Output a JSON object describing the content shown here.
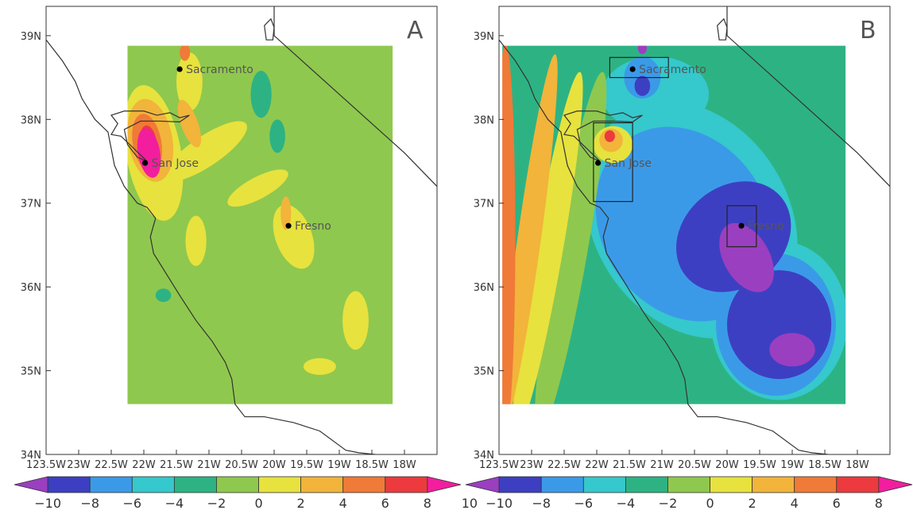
{
  "panels": [
    {
      "label": "A",
      "cities": [
        {
          "name": "Sacramento",
          "lat": 38.6,
          "lon": -121.45
        },
        {
          "name": "San Jose",
          "lat": 37.48,
          "lon": -121.98
        },
        {
          "name": "Fresno",
          "lat": 36.73,
          "lon": -119.78
        }
      ],
      "boxes": []
    },
    {
      "label": "B",
      "cities": [
        {
          "name": "Sacramento",
          "lat": 38.6,
          "lon": -121.45
        },
        {
          "name": "San Jose",
          "lat": 37.48,
          "lon": -121.98
        },
        {
          "name": "Fresno",
          "lat": 36.73,
          "lon": -119.78
        }
      ],
      "boxes": [
        {
          "name": "Sacramento",
          "lon_min": -121.8,
          "lon_max": -120.9,
          "lat_min": 38.5,
          "lat_max": 38.74
        },
        {
          "name": "San Jose",
          "lon_min": -122.05,
          "lon_max": -121.45,
          "lat_min": 37.02,
          "lat_max": 37.96
        },
        {
          "name": "Fresno",
          "lon_min": -120.0,
          "lon_max": -119.55,
          "lat_min": 36.48,
          "lat_max": 36.97
        }
      ]
    }
  ],
  "axes": {
    "lat_ticks": [
      "34N",
      "35N",
      "36N",
      "37N",
      "38N",
      "39N"
    ],
    "lat_values": [
      34,
      35,
      36,
      37,
      38,
      39
    ],
    "lon_ticks": [
      "123.5W",
      "23W",
      "22.5W",
      "22W",
      "21.5W",
      "21W",
      "20.5W",
      "20W",
      "19.5W",
      "19W",
      "18.5W",
      "18W"
    ],
    "lon_values": [
      -123.5,
      -123,
      -122.5,
      -122,
      -121.5,
      -121,
      -120.5,
      -120,
      -119.5,
      -119,
      -118.5,
      -118
    ]
  },
  "colorbar": {
    "ticks": [
      "−10",
      "−8",
      "−6",
      "−4",
      "−2",
      "0",
      "2",
      "4",
      "6",
      "8",
      "10"
    ],
    "colors": [
      "#9a3fc0",
      "#3d3fc2",
      "#3b9ae8",
      "#35c8cc",
      "#2db383",
      "#8fc84e",
      "#e7e23e",
      "#f2b43a",
      "#f07a37",
      "#ec3a3e",
      "#f21e9e"
    ]
  },
  "fields": {
    "A": {
      "background": "#8fc84e",
      "features": [
        {
          "lon": -121.85,
          "lat": 37.6,
          "rx": 0.42,
          "ry": 0.82,
          "rot": -10,
          "color": "#e7e23e"
        },
        {
          "lon": -121.05,
          "lat": 37.62,
          "rx": 0.75,
          "ry": 0.18,
          "rot": -34,
          "color": "#e7e23e"
        },
        {
          "lon": -120.25,
          "lat": 37.18,
          "rx": 0.52,
          "ry": 0.13,
          "rot": -28,
          "color": "#e7e23e"
        },
        {
          "lon": -121.3,
          "lat": 38.45,
          "rx": 0.2,
          "ry": 0.35,
          "rot": 0,
          "color": "#e7e23e"
        },
        {
          "lon": -119.7,
          "lat": 36.6,
          "rx": 0.28,
          "ry": 0.4,
          "rot": -20,
          "color": "#e7e23e"
        },
        {
          "lon": -121.2,
          "lat": 36.55,
          "rx": 0.16,
          "ry": 0.3,
          "rot": 0,
          "color": "#e7e23e"
        },
        {
          "lon": -118.75,
          "lat": 35.6,
          "rx": 0.2,
          "ry": 0.35,
          "rot": 0,
          "color": "#e7e23e"
        },
        {
          "lon": -119.3,
          "lat": 35.05,
          "rx": 0.25,
          "ry": 0.1,
          "rot": 0,
          "color": "#e7e23e"
        },
        {
          "lon": -121.9,
          "lat": 37.75,
          "rx": 0.34,
          "ry": 0.5,
          "rot": -10,
          "color": "#f2b43a"
        },
        {
          "lon": -121.3,
          "lat": 37.95,
          "rx": 0.13,
          "ry": 0.3,
          "rot": -20,
          "color": "#f2b43a"
        },
        {
          "lon": -119.82,
          "lat": 36.88,
          "rx": 0.08,
          "ry": 0.2,
          "rot": 0,
          "color": "#f2b43a"
        },
        {
          "lon": -121.95,
          "lat": 37.72,
          "rx": 0.22,
          "ry": 0.35,
          "rot": -10,
          "color": "#f07a37"
        },
        {
          "lon": -121.37,
          "lat": 38.8,
          "rx": 0.08,
          "ry": 0.1,
          "rot": 0,
          "color": "#f07a37"
        },
        {
          "lon": -121.93,
          "lat": 37.75,
          "rx": 0.12,
          "ry": 0.18,
          "rot": -10,
          "color": "#ec3a3e"
        },
        {
          "lon": -121.92,
          "lat": 37.6,
          "rx": 0.17,
          "ry": 0.3,
          "rot": -10,
          "color": "#f21e9e"
        },
        {
          "lon": -120.2,
          "lat": 38.3,
          "rx": 0.16,
          "ry": 0.28,
          "rot": 0,
          "color": "#2db383"
        },
        {
          "lon": -119.95,
          "lat": 37.8,
          "rx": 0.12,
          "ry": 0.2,
          "rot": 0,
          "color": "#2db383"
        },
        {
          "lon": -121.7,
          "lat": 35.9,
          "rx": 0.12,
          "ry": 0.08,
          "rot": 0,
          "color": "#2db383"
        }
      ]
    },
    "B": {
      "background": "#2db383",
      "features": [
        {
          "lon": -121.1,
          "lat": 38.3,
          "rx": 0.82,
          "ry": 0.45,
          "rot": 0,
          "color": "#35c8cc"
        },
        {
          "lon": -120.55,
          "lat": 36.8,
          "rx": 1.5,
          "ry": 1.5,
          "rot": -32,
          "color": "#35c8cc"
        },
        {
          "lon": -119.2,
          "lat": 35.6,
          "rx": 1.05,
          "ry": 0.95,
          "rot": 0,
          "color": "#35c8cc"
        },
        {
          "lon": -120.65,
          "lat": 36.75,
          "rx": 1.28,
          "ry": 1.22,
          "rot": -32,
          "color": "#3b9ae8"
        },
        {
          "lon": -119.25,
          "lat": 35.55,
          "rx": 0.92,
          "ry": 0.85,
          "rot": 0,
          "color": "#3b9ae8"
        },
        {
          "lon": -121.3,
          "lat": 38.5,
          "rx": 0.28,
          "ry": 0.25,
          "rot": 0,
          "color": "#3b9ae8"
        },
        {
          "lon": -119.9,
          "lat": 36.6,
          "rx": 0.95,
          "ry": 0.6,
          "rot": -40,
          "color": "#3d3fc2"
        },
        {
          "lon": -119.2,
          "lat": 35.55,
          "rx": 0.8,
          "ry": 0.65,
          "rot": 0,
          "color": "#3d3fc2"
        },
        {
          "lon": -121.3,
          "lat": 38.4,
          "rx": 0.12,
          "ry": 0.12,
          "rot": 0,
          "color": "#3d3fc2"
        },
        {
          "lon": -119.7,
          "lat": 36.35,
          "rx": 0.35,
          "ry": 0.45,
          "rot": -30,
          "color": "#9a3fc0"
        },
        {
          "lon": -119.0,
          "lat": 35.25,
          "rx": 0.35,
          "ry": 0.2,
          "rot": 0,
          "color": "#9a3fc0"
        },
        {
          "lon": -121.3,
          "lat": 38.85,
          "rx": 0.07,
          "ry": 0.07,
          "rot": 0,
          "color": "#9a3fc0"
        },
        {
          "lon": -122.4,
          "lat": 36.4,
          "rx": 0.25,
          "ry": 2.2,
          "rot": 10,
          "color": "#8fc84e"
        },
        {
          "lon": -122.75,
          "lat": 36.4,
          "rx": 0.22,
          "ry": 2.2,
          "rot": 10,
          "color": "#e7e23e"
        },
        {
          "lon": -123.05,
          "lat": 36.5,
          "rx": 0.18,
          "ry": 2.3,
          "rot": 8,
          "color": "#f2b43a"
        },
        {
          "lon": -123.4,
          "lat": 36.6,
          "rx": 0.15,
          "ry": 2.3,
          "rot": 0,
          "color": "#f07a37"
        },
        {
          "lon": -123.6,
          "lat": 37.1,
          "rx": 0.1,
          "ry": 1.5,
          "rot": 0,
          "color": "#ec3a3e"
        },
        {
          "lon": -121.75,
          "lat": 37.7,
          "rx": 0.3,
          "ry": 0.22,
          "rot": 0,
          "color": "#e7e23e"
        },
        {
          "lon": -121.78,
          "lat": 37.75,
          "rx": 0.18,
          "ry": 0.14,
          "rot": 0,
          "color": "#f2b43a"
        },
        {
          "lon": -121.8,
          "lat": 37.8,
          "rx": 0.08,
          "ry": 0.07,
          "rot": 0,
          "color": "#ec3a3e"
        }
      ]
    }
  }
}
